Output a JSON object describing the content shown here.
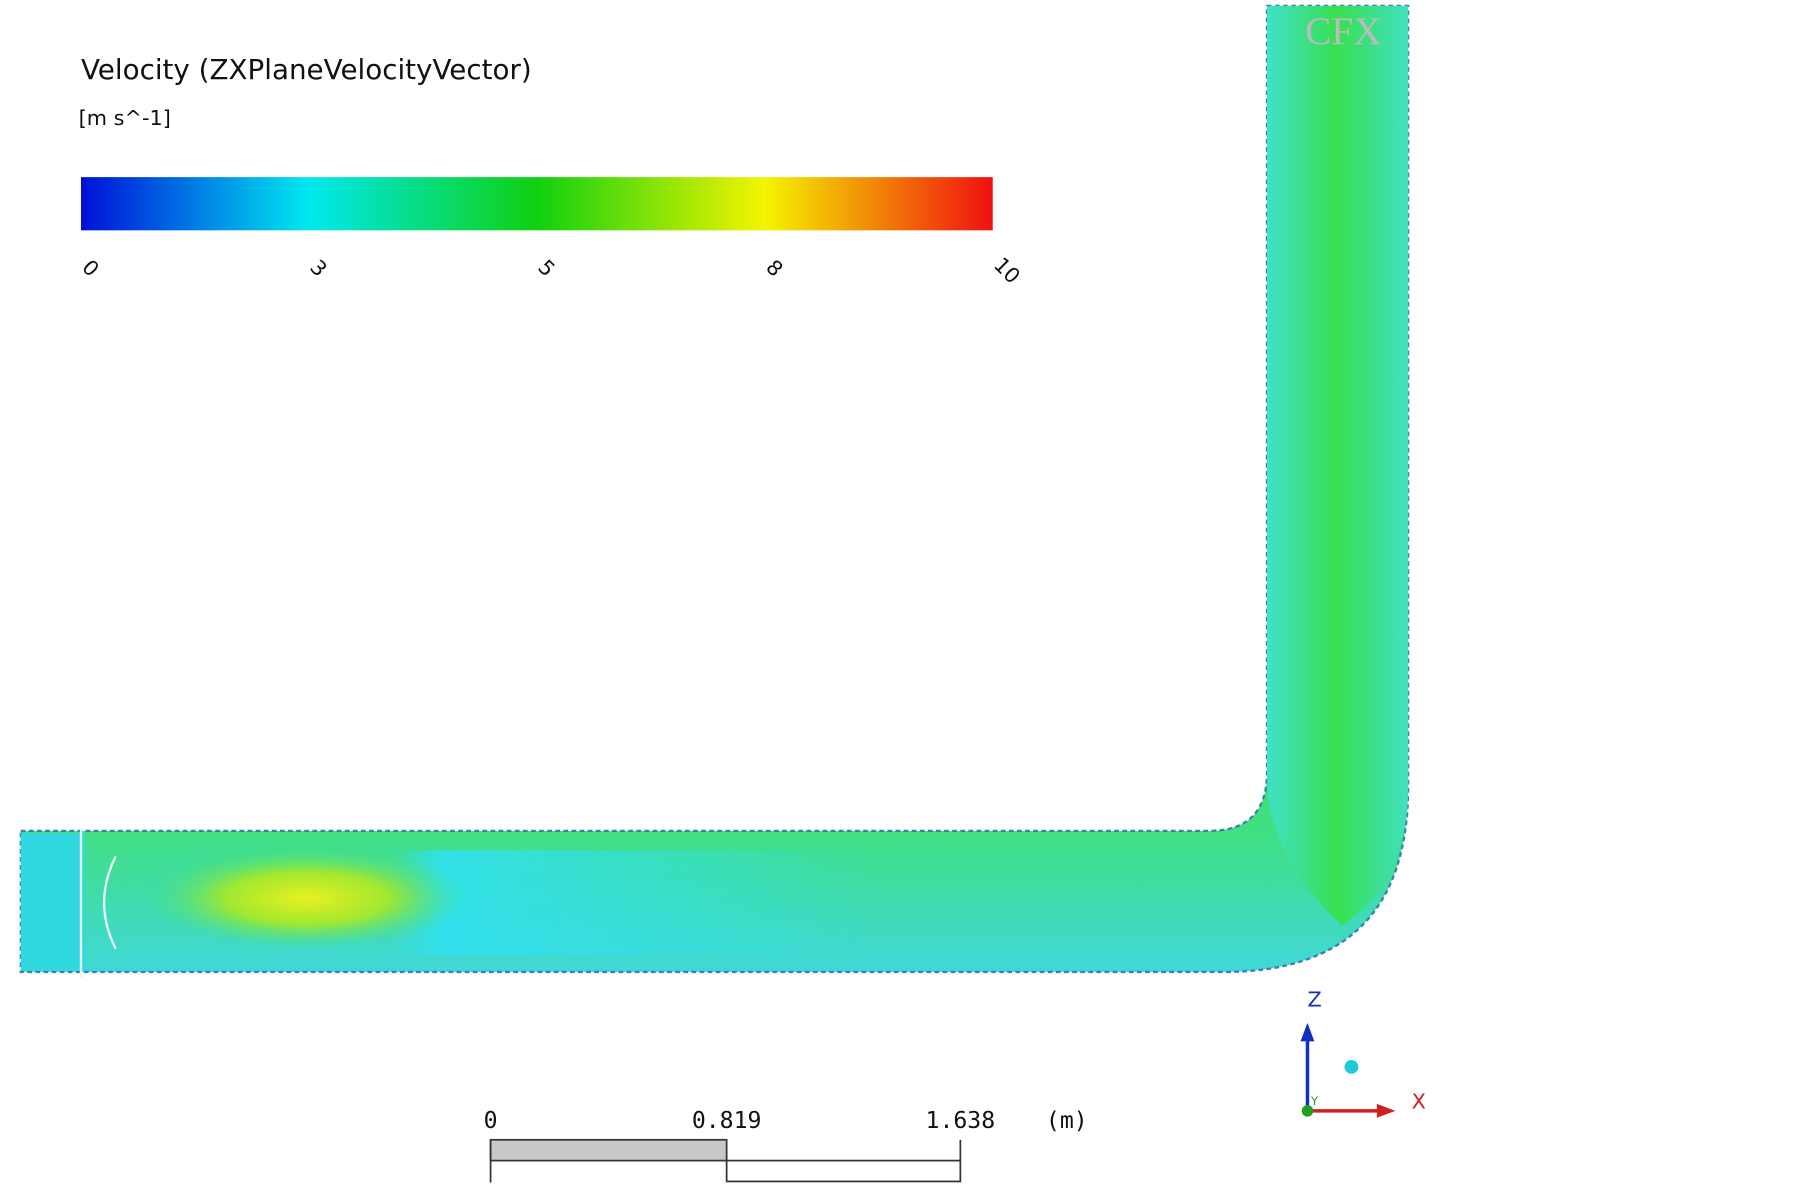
{
  "legend": {
    "title": "Velocity (ZXPlaneVelocityVector)",
    "units": "[m s^-1]",
    "ticks": [
      0,
      3,
      5,
      8,
      10
    ]
  },
  "scale_bar": {
    "labels": [
      "0",
      "0.819",
      "1.638"
    ],
    "unit": "(m)"
  },
  "axes": {
    "z": "Z",
    "x": "X",
    "y": "Y"
  },
  "logo": "CFX"
}
